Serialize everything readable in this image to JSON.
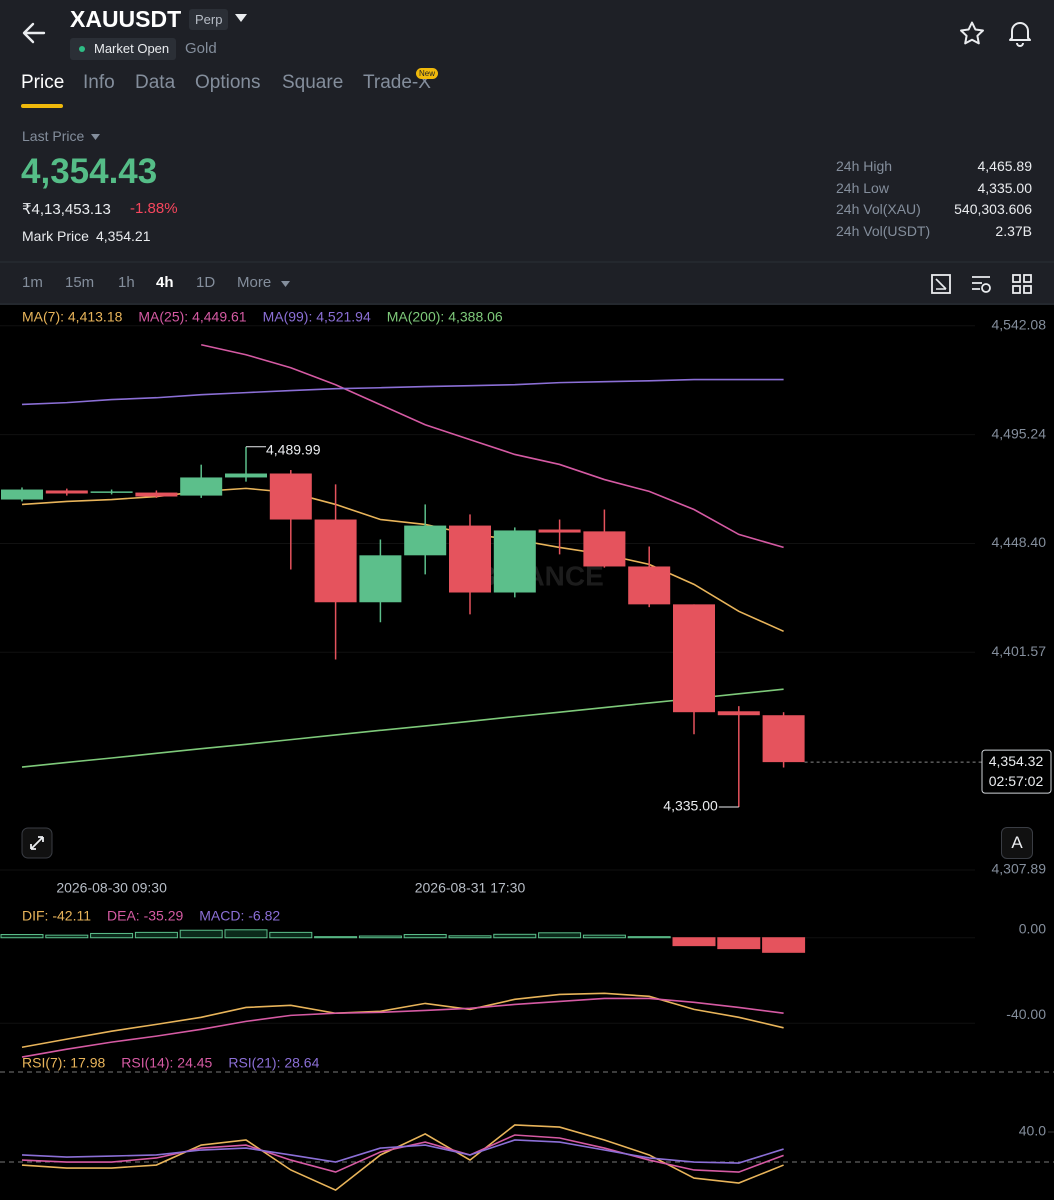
{
  "header": {
    "symbol": "XAUUSDT",
    "contract": "Perp",
    "status": "Market Open",
    "underlying": "Gold"
  },
  "tabs": [
    "Price",
    "Info",
    "Data",
    "Options",
    "Square",
    "Trade-X"
  ],
  "tab_badge": "New",
  "price": {
    "label": "Last Price",
    "last": "4,354.43",
    "local": "₹4,13,453.13",
    "change": "-1.88%",
    "mark_label": "Mark Price",
    "mark": "4,354.21"
  },
  "stats": [
    [
      "24h High",
      "4,465.89"
    ],
    [
      "24h Low",
      "4,335.00"
    ],
    [
      "24h Vol(XAU)",
      "540,303.606"
    ],
    [
      "24h Vol(USDT)",
      "2.37B"
    ]
  ],
  "intervals": [
    "1m",
    "15m",
    "1h",
    "4h",
    "1D",
    "More"
  ],
  "controls": {
    "auto": "A"
  },
  "chart_data": [
    {
      "type": "candlestick",
      "watermark": "BINANCE",
      "categories": [
        null,
        null,
        "2026-08-30 09:30",
        null,
        null,
        null,
        null,
        null,
        null,
        null,
        "2026-08-31 17:30",
        null,
        null,
        null,
        null,
        null,
        null,
        null
      ],
      "open": [
        4467.3,
        4471.2,
        4470.3,
        4470.3,
        4469.0,
        4476.8,
        4478.5,
        4458.7,
        4423.1,
        4443.3,
        4456.1,
        4427.3,
        4454.4,
        4453.6,
        4438.5,
        4422.2,
        4376.2,
        4374.5
      ],
      "high": [
        4472.5,
        4472.0,
        4471.6,
        4471.2,
        4482.3,
        4489.99,
        4480.0,
        4473.8,
        4450.1,
        4465.2,
        4460.9,
        4455.3,
        4458.7,
        4463.0,
        4447.1,
        4422.2,
        4378.4,
        4375.8
      ],
      "low": [
        4466.5,
        4469.0,
        4469.5,
        4468.0,
        4468.0,
        4475.0,
        4437.2,
        4398.5,
        4414.5,
        4435.1,
        4417.9,
        4425.2,
        4443.7,
        4438.0,
        4421.0,
        4366.3,
        4335.0,
        4352.0
      ],
      "close": [
        4471.6,
        4469.9,
        4470.8,
        4468.6,
        4476.8,
        4478.5,
        4458.7,
        4423.1,
        4443.3,
        4456.1,
        4427.3,
        4454.0,
        4453.1,
        4438.5,
        4422.2,
        4375.8,
        4374.5,
        4354.32
      ],
      "up_color": "#5cbf8b",
      "down_color": "#e5535d",
      "high_label": "4,489.99",
      "low_label": "4,335.00",
      "last_price_label": "4,354.32",
      "countdown": "02:57:02",
      "series": [
        {
          "name": "MA(7): 4,413.18",
          "color": "#e8b45a",
          "values": [
            4465.2,
            4466.5,
            4467.3,
            4468.6,
            4470.8,
            4472.1,
            4470.3,
            4465.2,
            4458.7,
            4456.6,
            4452.3,
            4450.1,
            4446.7,
            4443.7,
            4439.4,
            4430.8,
            4419.2,
            4410.6
          ]
        },
        {
          "name": "MA(25): 4,449.61",
          "color": "#d55aa3",
          "values": [
            null,
            null,
            null,
            null,
            4533.9,
            4529.6,
            4524.0,
            4516.7,
            4508.1,
            4499.5,
            4493.1,
            4486.7,
            4482.4,
            4475.9,
            4470.8,
            4463.0,
            4452.3,
            4446.7
          ]
        },
        {
          "name": "MA(99): 4,521.94",
          "color": "#8b6fd6",
          "values": [
            4508.2,
            4509.0,
            4510.3,
            4511.1,
            4512.4,
            4513.3,
            4514.2,
            4515.0,
            4515.4,
            4515.9,
            4516.3,
            4516.7,
            4517.6,
            4518.0,
            4518.4,
            4518.9,
            4518.9,
            4518.9
          ]
        },
        {
          "name": "MA(200): 4,388.06",
          "color": "#7ec97a",
          "values": [
            4352.2,
            4354.2,
            4356.1,
            4358.1,
            4360.1,
            4362.0,
            4364.0,
            4366.0,
            4368.0,
            4369.9,
            4371.9,
            4373.9,
            4375.8,
            4377.8,
            4379.8,
            4381.7,
            4383.7,
            4385.7
          ]
        }
      ],
      "ylim": [
        4295,
        4551
      ],
      "yticks": [
        {
          "value": 4542.08,
          "label": "4,542.08"
        },
        {
          "value": 4495.24,
          "label": "4,495.24"
        },
        {
          "value": 4448.4,
          "label": "4,448.40"
        },
        {
          "value": 4401.57,
          "label": "4,401.57"
        },
        {
          "value": 4307.89,
          "label": "4,307.89"
        }
      ]
    },
    {
      "type": "macd",
      "up_color": "#5cbf8b",
      "down_color": "#e5535d",
      "series": [
        {
          "name": "DIF: -42.11",
          "color": "#e8b45a",
          "style": "line",
          "values": [
            -51.2,
            -47.4,
            -43.7,
            -40.5,
            -37.2,
            -32.6,
            -31.6,
            -35.3,
            -34.4,
            -30.7,
            -33.5,
            -28.8,
            -26.5,
            -26.0,
            -27.4,
            -33.5,
            -37.2,
            -42.11
          ]
        },
        {
          "name": "DEA: -35.29",
          "color": "#d55aa3",
          "style": "line",
          "values": [
            -55.8,
            -52.1,
            -48.8,
            -46.0,
            -42.8,
            -39.1,
            -36.3,
            -35.3,
            -34.9,
            -34.0,
            -33.0,
            -31.2,
            -29.8,
            -28.4,
            -28.4,
            -30.2,
            -32.6,
            -35.29
          ]
        },
        {
          "name": "MACD: -6.82",
          "color": "#8b6fd6",
          "style": "histogram",
          "values": [
            1.5,
            1.2,
            2.0,
            2.5,
            3.5,
            3.7,
            2.5,
            0.5,
            0.8,
            1.5,
            0.9,
            1.6,
            2.3,
            1.2,
            0.5,
            -3.7,
            -5.1,
            -6.82
          ]
        }
      ],
      "ylim": [
        -59.5,
        15.3
      ],
      "yticks": [
        {
          "value": 0,
          "label": "0.00"
        },
        {
          "value": -40,
          "label": "-40.00"
        }
      ]
    },
    {
      "type": "rsi",
      "reference_lines": [
        80,
        20
      ],
      "series": [
        {
          "name": "RSI(7): 17.98",
          "color": "#e8b45a",
          "values": [
            18.0,
            16.0,
            16.0,
            18.0,
            31.3,
            34.7,
            14.7,
            1.3,
            24.7,
            38.7,
            21.3,
            44.7,
            43.3,
            34.7,
            24.7,
            9.3,
            6.0,
            17.98
          ]
        },
        {
          "name": "RSI(14): 24.45",
          "color": "#d55aa3",
          "values": [
            21.3,
            20.0,
            20.0,
            22.7,
            29.3,
            31.3,
            21.3,
            13.3,
            26.7,
            33.3,
            24.7,
            38.0,
            36.0,
            29.3,
            21.3,
            14.7,
            13.3,
            24.45
          ]
        },
        {
          "name": "RSI(21): 28.64",
          "color": "#8b6fd6",
          "values": [
            24.7,
            23.3,
            24.0,
            24.7,
            28.0,
            29.3,
            24.7,
            20.0,
            29.3,
            31.3,
            24.7,
            34.7,
            33.3,
            28.0,
            22.7,
            20.0,
            19.3,
            28.64
          ]
        }
      ],
      "ylim": [
        -5.3,
        91.3
      ],
      "yticks": [
        {
          "value": 40,
          "label": "40.0"
        }
      ]
    }
  ]
}
